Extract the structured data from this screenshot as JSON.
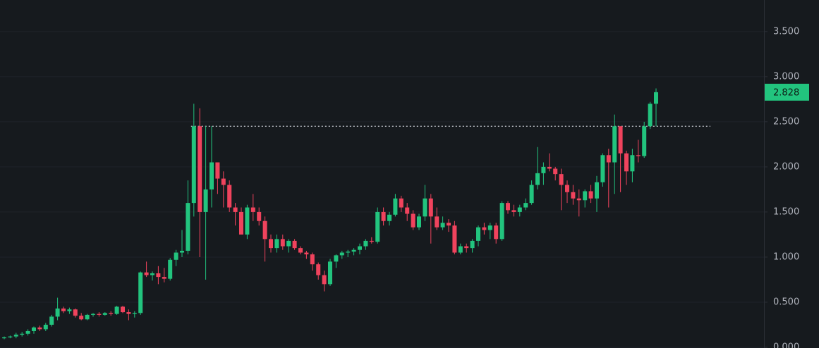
{
  "chart_data": {
    "type": "candlestick",
    "open": [
      0.1,
      0.11,
      0.12,
      0.14,
      0.15,
      0.18,
      0.22,
      0.2,
      0.25,
      0.34,
      0.43,
      0.4,
      0.42,
      0.35,
      0.31,
      0.36,
      0.37,
      0.36,
      0.38,
      0.37,
      0.45,
      0.39,
      0.37,
      0.38,
      0.83,
      0.8,
      0.82,
      0.78,
      0.76,
      0.97,
      1.05,
      1.07,
      1.6,
      2.45,
      1.5,
      1.75,
      2.05,
      1.87,
      1.8,
      1.55,
      1.5,
      1.25,
      1.55,
      1.5,
      1.4,
      1.2,
      1.1,
      1.2,
      1.12,
      1.18,
      1.1,
      1.05,
      1.03,
      0.92,
      0.8,
      0.7,
      0.95,
      1.02,
      1.05,
      1.06,
      1.08,
      1.12,
      1.18,
      1.17,
      1.5,
      1.4,
      1.47,
      1.65,
      1.55,
      1.48,
      1.33,
      1.45,
      1.65,
      1.45,
      1.33,
      1.38,
      1.35,
      1.05,
      1.12,
      1.1,
      1.18,
      1.33,
      1.3,
      1.35,
      1.2,
      1.6,
      1.52,
      1.5,
      1.55,
      1.6,
      1.8,
      1.93,
      2.0,
      1.98,
      1.92,
      1.8,
      1.72,
      1.65,
      1.63,
      1.73,
      1.65,
      1.83,
      2.13,
      2.05,
      2.45,
      2.15,
      1.95,
      2.13,
      2.12,
      2.45,
      2.7
    ],
    "high": [
      0.12,
      0.13,
      0.16,
      0.17,
      0.2,
      0.23,
      0.24,
      0.27,
      0.36,
      0.55,
      0.45,
      0.44,
      0.43,
      0.38,
      0.37,
      0.38,
      0.39,
      0.39,
      0.4,
      0.46,
      0.46,
      0.42,
      0.4,
      0.84,
      0.95,
      0.84,
      0.9,
      0.88,
      0.99,
      1.08,
      1.3,
      1.85,
      2.7,
      2.65,
      2.45,
      2.45,
      2.05,
      1.95,
      1.85,
      1.6,
      1.55,
      1.58,
      1.7,
      1.55,
      1.45,
      1.25,
      1.25,
      1.25,
      1.2,
      1.2,
      1.12,
      1.07,
      1.05,
      0.94,
      0.85,
      0.98,
      1.03,
      1.07,
      1.08,
      1.1,
      1.15,
      1.2,
      1.22,
      1.55,
      1.55,
      1.5,
      1.7,
      1.68,
      1.6,
      1.52,
      1.48,
      1.8,
      1.7,
      1.55,
      1.45,
      1.42,
      1.4,
      1.15,
      1.15,
      1.2,
      1.35,
      1.38,
      1.38,
      1.38,
      1.62,
      1.62,
      1.58,
      1.58,
      1.65,
      1.85,
      2.22,
      2.05,
      2.15,
      2.0,
      1.98,
      1.85,
      1.8,
      1.75,
      1.75,
      1.8,
      1.9,
      2.15,
      2.2,
      2.58,
      2.45,
      2.18,
      2.2,
      2.3,
      2.5,
      2.72,
      2.87
    ],
    "low": [
      0.09,
      0.1,
      0.1,
      0.12,
      0.13,
      0.15,
      0.18,
      0.18,
      0.23,
      0.3,
      0.38,
      0.37,
      0.33,
      0.3,
      0.3,
      0.34,
      0.34,
      0.35,
      0.35,
      0.36,
      0.38,
      0.3,
      0.33,
      0.36,
      0.78,
      0.74,
      0.7,
      0.72,
      0.74,
      0.9,
      1.0,
      1.03,
      1.45,
      1.0,
      0.75,
      1.55,
      1.7,
      1.55,
      1.5,
      1.35,
      1.25,
      1.2,
      1.4,
      1.35,
      0.95,
      1.05,
      1.05,
      1.08,
      1.05,
      1.08,
      1.03,
      0.98,
      0.85,
      0.75,
      0.62,
      0.68,
      0.88,
      0.98,
      1.0,
      1.02,
      1.03,
      1.08,
      1.15,
      1.15,
      1.35,
      1.35,
      1.45,
      1.5,
      1.4,
      1.3,
      1.3,
      1.4,
      1.15,
      1.3,
      1.3,
      1.28,
      1.03,
      1.03,
      1.05,
      1.05,
      1.12,
      1.25,
      1.2,
      1.15,
      1.18,
      1.48,
      1.45,
      1.45,
      1.52,
      1.58,
      1.75,
      1.8,
      1.95,
      1.85,
      1.52,
      1.6,
      1.58,
      1.45,
      1.55,
      1.6,
      1.5,
      1.78,
      1.55,
      1.7,
      1.72,
      1.8,
      1.83,
      2.05,
      2.1,
      2.42,
      2.45
    ],
    "close": [
      0.11,
      0.12,
      0.14,
      0.15,
      0.18,
      0.22,
      0.2,
      0.25,
      0.34,
      0.43,
      0.4,
      0.42,
      0.35,
      0.31,
      0.36,
      0.37,
      0.36,
      0.38,
      0.37,
      0.45,
      0.39,
      0.37,
      0.38,
      0.83,
      0.8,
      0.82,
      0.78,
      0.76,
      0.97,
      1.05,
      1.07,
      1.6,
      2.45,
      1.5,
      1.75,
      2.05,
      1.87,
      1.8,
      1.55,
      1.5,
      1.25,
      1.55,
      1.5,
      1.4,
      1.2,
      1.1,
      1.2,
      1.12,
      1.18,
      1.1,
      1.05,
      1.03,
      0.92,
      0.8,
      0.7,
      0.95,
      1.02,
      1.05,
      1.06,
      1.08,
      1.12,
      1.18,
      1.17,
      1.5,
      1.4,
      1.47,
      1.65,
      1.55,
      1.48,
      1.33,
      1.45,
      1.65,
      1.45,
      1.33,
      1.38,
      1.35,
      1.05,
      1.12,
      1.1,
      1.18,
      1.33,
      1.3,
      1.35,
      1.2,
      1.6,
      1.52,
      1.5,
      1.55,
      1.6,
      1.8,
      1.93,
      2.0,
      1.98,
      1.92,
      1.8,
      1.72,
      1.65,
      1.63,
      1.73,
      1.65,
      1.83,
      2.13,
      2.05,
      2.45,
      2.15,
      1.95,
      2.13,
      2.12,
      2.45,
      2.7,
      2.828
    ],
    "up_color": "#22c47e",
    "down_color": "#f0435d",
    "ylim": [
      0,
      3.85
    ],
    "yticks": [
      {
        "value": 0,
        "label": "0.000"
      },
      {
        "value": 0.5,
        "label": "0.500"
      },
      {
        "value": 1,
        "label": "1.000"
      },
      {
        "value": 1.5,
        "label": "1.500"
      },
      {
        "value": 2,
        "label": "2.000"
      },
      {
        "value": 2.5,
        "label": "2.500"
      },
      {
        "value": 3,
        "label": "3.000"
      },
      {
        "value": 3.5,
        "label": "3.500"
      }
    ],
    "grid": true,
    "reference_line": 2.45
  }
}
